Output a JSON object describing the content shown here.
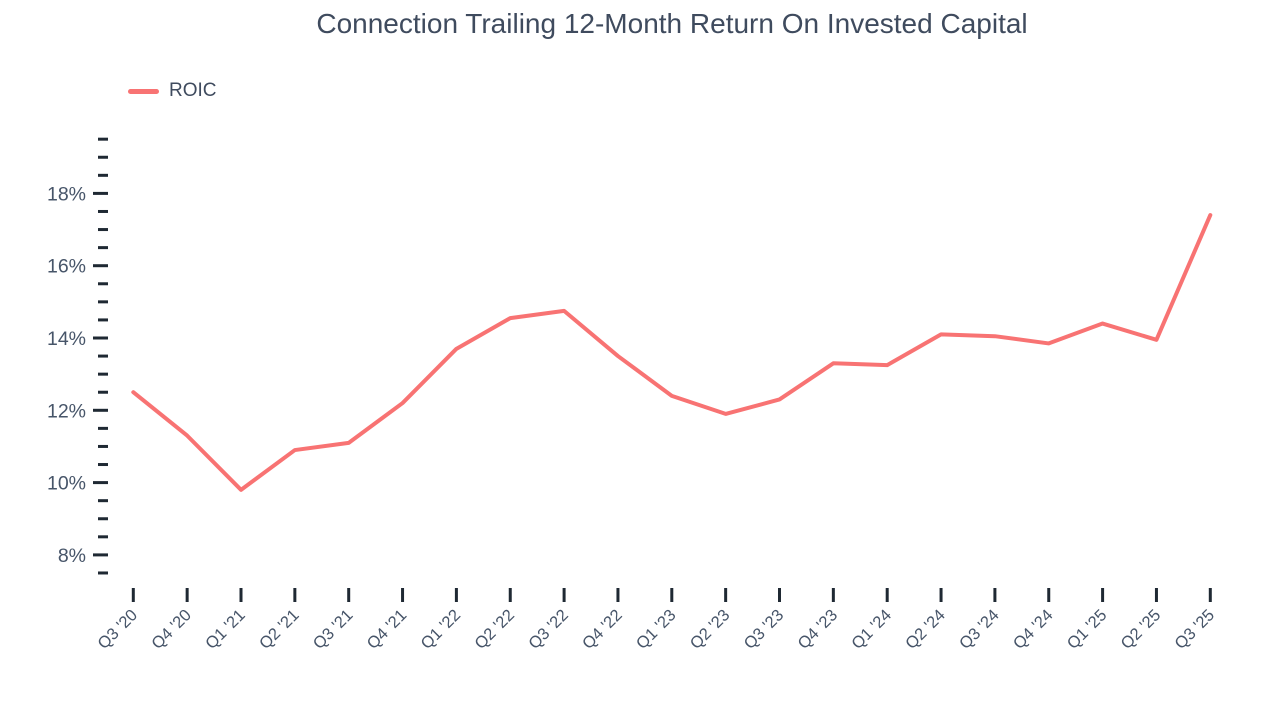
{
  "chart_data": {
    "type": "line",
    "title": "Connection Trailing 12-Month Return On Invested Capital",
    "legend": {
      "position": "top-left",
      "items": [
        {
          "label": "ROIC",
          "color": "#F87373"
        }
      ]
    },
    "categories": [
      "Q3 '20",
      "Q4 '20",
      "Q1 '21",
      "Q2 '21",
      "Q3 '21",
      "Q4 '21",
      "Q1 '22",
      "Q2 '22",
      "Q3 '22",
      "Q4 '22",
      "Q1 '23",
      "Q2 '23",
      "Q3 '23",
      "Q4 '23",
      "Q1 '24",
      "Q2 '24",
      "Q3 '24",
      "Q4 '24",
      "Q1 '25",
      "Q2 '25",
      "Q3 '25"
    ],
    "series": [
      {
        "name": "ROIC",
        "values": [
          12.5,
          11.3,
          9.8,
          10.9,
          11.1,
          12.2,
          13.7,
          14.55,
          14.75,
          13.5,
          12.4,
          11.9,
          12.3,
          13.3,
          13.25,
          14.1,
          14.05,
          13.85,
          14.4,
          13.95,
          17.4
        ]
      }
    ],
    "xlabel": "",
    "ylabel": "",
    "ytick_labels": [
      "8%",
      "10%",
      "12%",
      "14%",
      "16%",
      "18%"
    ],
    "yticks_major": [
      8,
      10,
      12,
      14,
      16,
      18
    ],
    "ytick_minor_step": 0.5,
    "ylim": [
      7.5,
      19.5
    ],
    "grid": false,
    "colors": {
      "line": "#F87373",
      "title": "#3F4B5E",
      "axis_label": "#475569",
      "tick": "#1F2933",
      "background": "#ffffff"
    }
  }
}
